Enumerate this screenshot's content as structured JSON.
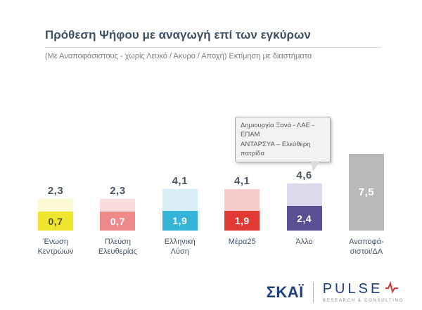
{
  "header": {
    "title": "Πρόθεση Ψήφου με αναγωγή επί των εγκύρων",
    "subtitle": "(Με Αναποφάσιστους - χωρίς Λευκό / Άκυρο / Αποχή)  Εκτίμηση με διαστήματα"
  },
  "annotation": {
    "line1": "Δημιουργία Ξανά - ΛΑΕ - ΕΠΑΜ",
    "line2": "ΑΝΤΑΡΣΥΑ – Ελεύθερη πατρίδα"
  },
  "footer": {
    "skai_logo_text": "ΣΚΑΪ",
    "pulse_logo_text": "PULSE",
    "pulse_sub_text": "RESEARCH & CONSULTING"
  },
  "colors": {
    "title": "#3e5266",
    "skai_blue": "#1e3f7d",
    "pulse_red": "#e03131"
  },
  "chart_data": {
    "type": "bar",
    "subtype": "interval-stacked-columns",
    "title": "Πρόθεση Ψήφου με αναγωγή επί των εγκύρων",
    "subtitle": "(Με Αναποφάσιστους - χωρίς Λευκό / Άκυρο / Αποχή)  Εκτίμηση με διαστήματα",
    "ylim": [
      0,
      8
    ],
    "grid": false,
    "legend": false,
    "categories": [
      "Ένωση Κεντρώων",
      "Πλεύση Ελευθερίας",
      "Ελληνική Λύση",
      "Μέρα25",
      "Άλλο",
      "Αναποφάσιστοι/ΔΑ"
    ],
    "annotation": {
      "target_category": "Άλλο",
      "text_lines": [
        "Δημιουργία Ξανά - ΛΑΕ - ΕΠΑΜ",
        "ΑΝΤΑΡΣΥΑ – Ελεύθερη πατρίδα"
      ]
    },
    "bars": [
      {
        "category_lines": [
          "Ένωση",
          "Κεντρώων"
        ],
        "low": 0.7,
        "high": 2.3,
        "low_label": "0,7",
        "high_label": "2,3",
        "low_color": "#efe52f",
        "high_color": "#fbf9d4",
        "low_label_color": "#55532f"
      },
      {
        "category_lines": [
          "Πλεύση",
          "Ελευθερίας"
        ],
        "low": 0.7,
        "high": 2.3,
        "low_label": "0,7",
        "high_label": "2,3",
        "low_color": "#f08a8a",
        "high_color": "#fadcdc",
        "low_label_color": "#ffffff"
      },
      {
        "category_lines": [
          "Ελληνική",
          "Λύση"
        ],
        "low": 1.9,
        "high": 4.1,
        "low_label": "1,9",
        "high_label": "4,1",
        "low_color": "#35b4d9",
        "high_color": "#daeef7",
        "low_label_color": "#ffffff"
      },
      {
        "category_lines": [
          "Μέρα25"
        ],
        "low": 1.9,
        "high": 4.1,
        "low_label": "1,9",
        "high_label": "4,1",
        "low_color": "#e23a32",
        "high_color": "#f7cbc8",
        "low_label_color": "#ffffff"
      },
      {
        "category_lines": [
          "Άλλο"
        ],
        "low": 2.4,
        "high": 4.6,
        "low_label": "2,4",
        "high_label": "4,6",
        "low_color": "#5a4f93",
        "high_color": "#ddd8eb",
        "low_label_color": "#ffffff"
      },
      {
        "category_lines": [
          "Αναποφά-",
          "σιστοι/ΔΑ"
        ],
        "low": null,
        "high": 7.5,
        "low_label": null,
        "high_label": "7,5",
        "low_color": null,
        "high_color": "#b9b9b9",
        "low_label_color": "#ffffff",
        "value_inside": true
      }
    ]
  }
}
